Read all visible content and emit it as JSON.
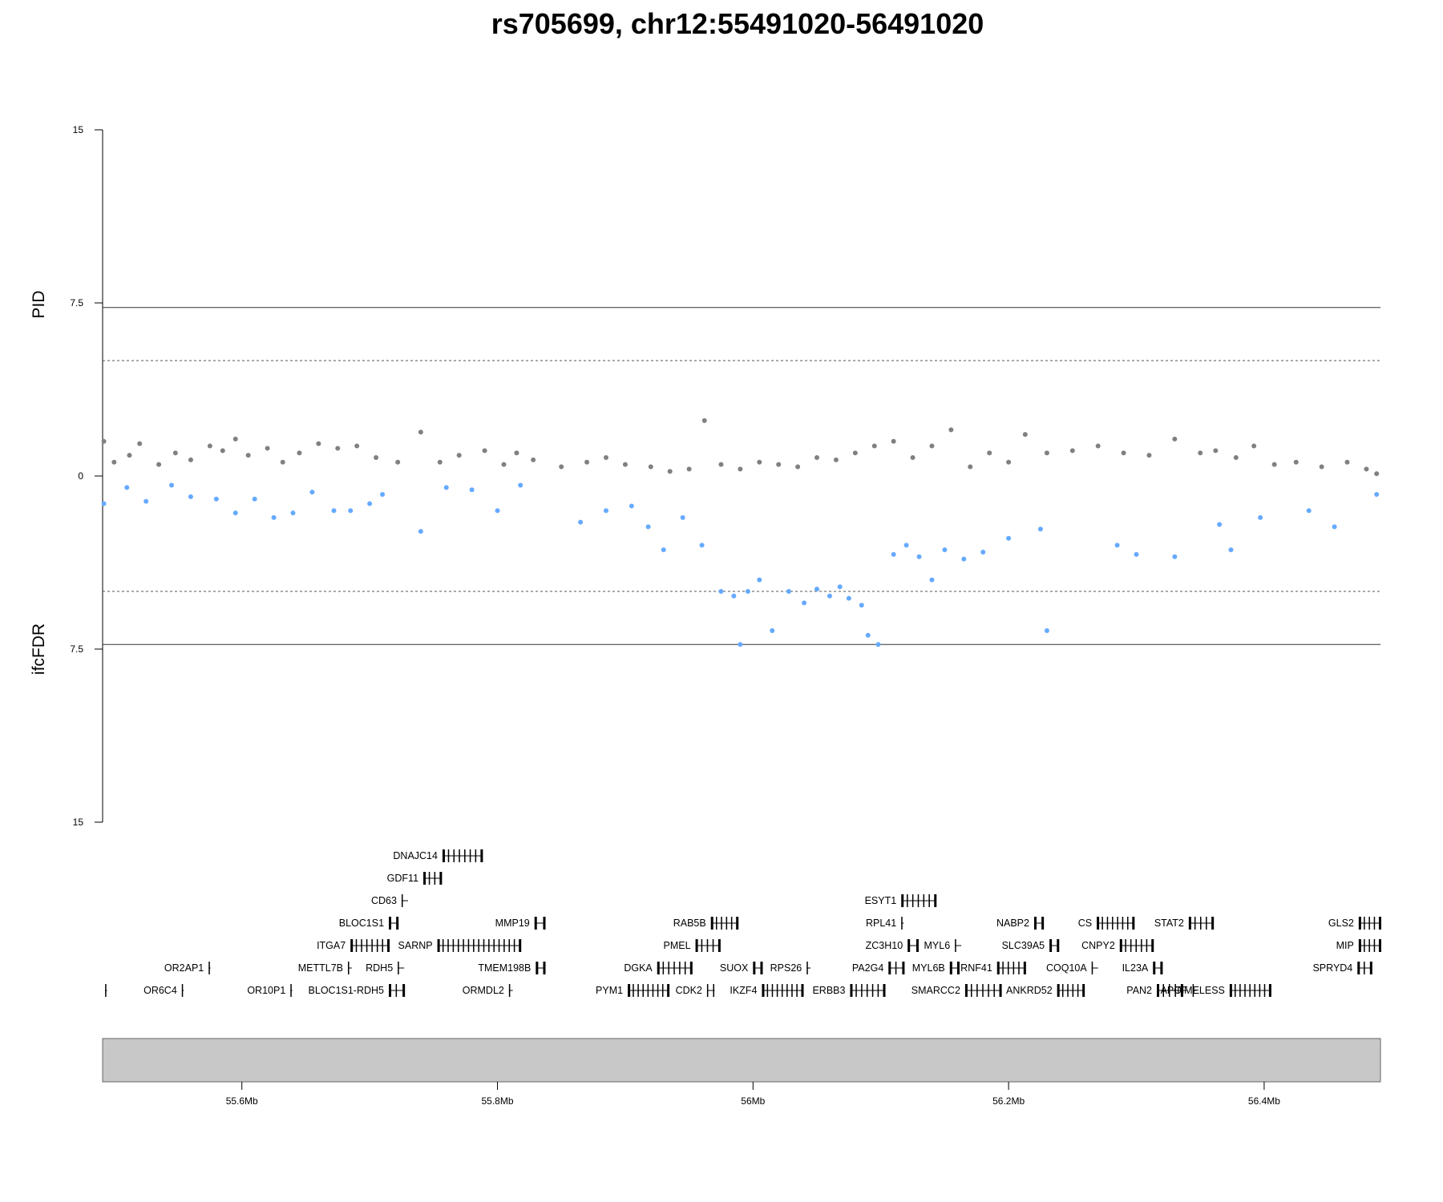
{
  "chart_data": {
    "type": "scatter",
    "title": "rs705699, chr12:55491020-56491020",
    "region": {
      "chrom": "chr12",
      "start": 55491020,
      "end": 56491020
    },
    "upper_panel": {
      "ylabel": "PID",
      "ylim": [
        0,
        15
      ],
      "yticks": [
        "0",
        "7.5",
        "15"
      ],
      "threshold_solid": 7.3,
      "threshold_dashed": 5,
      "color": "#808080"
    },
    "lower_panel": {
      "ylabel": "ifcFDR",
      "ylim": [
        0,
        15
      ],
      "yticks": [
        "0",
        "7.5",
        "15"
      ],
      "threshold_solid": 7.3,
      "threshold_dashed": 5,
      "color": "#66aaff"
    },
    "x_ticks": [
      {
        "pos": 55600000,
        "label": "55.6Mb"
      },
      {
        "pos": 55800000,
        "label": "55.8Mb"
      },
      {
        "pos": 56000000,
        "label": "56Mb"
      },
      {
        "pos": 56200000,
        "label": "56.2Mb"
      },
      {
        "pos": 56400000,
        "label": "56.4Mb"
      }
    ],
    "upper_points": [
      [
        55492000,
        1.5
      ],
      [
        55500000,
        0.6
      ],
      [
        55512000,
        0.9
      ],
      [
        55520000,
        1.4
      ],
      [
        55535000,
        0.5
      ],
      [
        55548000,
        1.0
      ],
      [
        55560000,
        0.7
      ],
      [
        55575000,
        1.3
      ],
      [
        55585000,
        1.1
      ],
      [
        55595000,
        1.6
      ],
      [
        55605000,
        0.9
      ],
      [
        55620000,
        1.2
      ],
      [
        55632000,
        0.6
      ],
      [
        55645000,
        1.0
      ],
      [
        55660000,
        1.4
      ],
      [
        55675000,
        1.2
      ],
      [
        55690000,
        1.3
      ],
      [
        55705000,
        0.8
      ],
      [
        55722000,
        0.6
      ],
      [
        55740000,
        1.9
      ],
      [
        55755000,
        0.6
      ],
      [
        55770000,
        0.9
      ],
      [
        55790000,
        1.1
      ],
      [
        55805000,
        0.5
      ],
      [
        55815000,
        1.0
      ],
      [
        55828000,
        0.7
      ],
      [
        55850000,
        0.4
      ],
      [
        55870000,
        0.6
      ],
      [
        55885000,
        0.8
      ],
      [
        55900000,
        0.5
      ],
      [
        55920000,
        0.4
      ],
      [
        55935000,
        0.2
      ],
      [
        55950000,
        0.3
      ],
      [
        55962000,
        2.4
      ],
      [
        55975000,
        0.5
      ],
      [
        55990000,
        0.3
      ],
      [
        56005000,
        0.6
      ],
      [
        56020000,
        0.5
      ],
      [
        56035000,
        0.4
      ],
      [
        56050000,
        0.8
      ],
      [
        56065000,
        0.7
      ],
      [
        56080000,
        1.0
      ],
      [
        56095000,
        1.3
      ],
      [
        56110000,
        1.5
      ],
      [
        56125000,
        0.8
      ],
      [
        56140000,
        1.3
      ],
      [
        56155000,
        2.0
      ],
      [
        56170000,
        0.4
      ],
      [
        56185000,
        1.0
      ],
      [
        56200000,
        0.6
      ],
      [
        56213000,
        1.8
      ],
      [
        56230000,
        1.0
      ],
      [
        56250000,
        1.1
      ],
      [
        56270000,
        1.3
      ],
      [
        56290000,
        1.0
      ],
      [
        56310000,
        0.9
      ],
      [
        56330000,
        1.6
      ],
      [
        56350000,
        1.0
      ],
      [
        56362000,
        1.1
      ],
      [
        56378000,
        0.8
      ],
      [
        56392000,
        1.3
      ],
      [
        56408000,
        0.5
      ],
      [
        56425000,
        0.6
      ],
      [
        56445000,
        0.4
      ],
      [
        56465000,
        0.6
      ],
      [
        56480000,
        0.3
      ],
      [
        56488000,
        0.1
      ]
    ],
    "lower_points": [
      [
        55492000,
        1.2
      ],
      [
        55510000,
        0.5
      ],
      [
        55525000,
        1.1
      ],
      [
        55545000,
        0.4
      ],
      [
        55560000,
        0.9
      ],
      [
        55580000,
        1.0
      ],
      [
        55595000,
        1.6
      ],
      [
        55610000,
        1.0
      ],
      [
        55625000,
        1.8
      ],
      [
        55640000,
        1.6
      ],
      [
        55655000,
        0.7
      ],
      [
        55672000,
        1.5
      ],
      [
        55685000,
        1.5
      ],
      [
        55700000,
        1.2
      ],
      [
        55710000,
        0.8
      ],
      [
        55740000,
        2.4
      ],
      [
        55760000,
        0.5
      ],
      [
        55780000,
        0.6
      ],
      [
        55800000,
        1.5
      ],
      [
        55818000,
        0.4
      ],
      [
        55865000,
        2.0
      ],
      [
        55885000,
        1.5
      ],
      [
        55905000,
        1.3
      ],
      [
        55918000,
        2.2
      ],
      [
        55930000,
        3.2
      ],
      [
        55945000,
        1.8
      ],
      [
        55960000,
        3.0
      ],
      [
        55975000,
        5.0
      ],
      [
        55985000,
        5.2
      ],
      [
        55990000,
        7.3
      ],
      [
        55996000,
        5.0
      ],
      [
        56005000,
        4.5
      ],
      [
        56015000,
        6.7
      ],
      [
        56028000,
        5.0
      ],
      [
        56040000,
        5.5
      ],
      [
        56050000,
        4.9
      ],
      [
        56060000,
        5.2
      ],
      [
        56068000,
        4.8
      ],
      [
        56075000,
        5.3
      ],
      [
        56085000,
        5.6
      ],
      [
        56090000,
        6.9
      ],
      [
        56098000,
        7.3
      ],
      [
        56110000,
        3.4
      ],
      [
        56120000,
        3.0
      ],
      [
        56130000,
        3.5
      ],
      [
        56140000,
        4.5
      ],
      [
        56150000,
        3.2
      ],
      [
        56165000,
        3.6
      ],
      [
        56180000,
        3.3
      ],
      [
        56200000,
        2.7
      ],
      [
        56225000,
        2.3
      ],
      [
        56230000,
        6.7
      ],
      [
        56285000,
        3.0
      ],
      [
        56300000,
        3.4
      ],
      [
        56330000,
        3.5
      ],
      [
        56365000,
        2.1
      ],
      [
        56374000,
        3.2
      ],
      [
        56397000,
        1.8
      ],
      [
        56435000,
        1.5
      ],
      [
        56455000,
        2.2
      ],
      [
        56488000,
        0.8
      ]
    ],
    "genes": [
      {
        "name": "DNAJC14",
        "start": 55757000,
        "end": 55788000,
        "row": 0,
        "strand": "-"
      },
      {
        "name": "GDF11",
        "start": 55742000,
        "end": 55756000,
        "row": 1,
        "strand": "+"
      },
      {
        "name": "CD63",
        "start": 55725000,
        "end": 55730000,
        "row": 2,
        "strand": "+"
      },
      {
        "name": "ESYT1",
        "start": 56116000,
        "end": 56143000,
        "row": 2,
        "strand": "+"
      },
      {
        "name": "BLOC1S1",
        "start": 55715000,
        "end": 55722000,
        "row": 3,
        "strand": "+"
      },
      {
        "name": "MMP19",
        "start": 55829000,
        "end": 55837000,
        "row": 3,
        "strand": "-"
      },
      {
        "name": "RAB5B",
        "start": 55967000,
        "end": 55988000,
        "row": 3,
        "strand": "+"
      },
      {
        "name": "RPL41",
        "start": 56116000,
        "end": 56118000,
        "row": 3,
        "strand": "+"
      },
      {
        "name": "NABP2",
        "start": 56220000,
        "end": 56227000,
        "row": 3,
        "strand": "+"
      },
      {
        "name": "CS",
        "start": 56269000,
        "end": 56298000,
        "row": 3,
        "strand": "-"
      },
      {
        "name": "STAT2",
        "start": 56341000,
        "end": 56360000,
        "row": 3,
        "strand": "-"
      },
      {
        "name": "GLS2",
        "start": 56474000,
        "end": 56491000,
        "row": 3,
        "strand": "-"
      },
      {
        "name": "ITGA7",
        "start": 55685000,
        "end": 55715000,
        "row": 4,
        "strand": "-"
      },
      {
        "name": "SARNP",
        "start": 55753000,
        "end": 55818000,
        "row": 4,
        "strand": "-"
      },
      {
        "name": "PMEL",
        "start": 55955000,
        "end": 55974000,
        "row": 4,
        "strand": "-"
      },
      {
        "name": "ZC3H10",
        "start": 56121000,
        "end": 56129000,
        "row": 4,
        "strand": "+"
      },
      {
        "name": "MYL6",
        "start": 56158000,
        "end": 56163000,
        "row": 4,
        "strand": "+"
      },
      {
        "name": "SLC39A5",
        "start": 56232000,
        "end": 56239000,
        "row": 4,
        "strand": "+"
      },
      {
        "name": "CNPY2",
        "start": 56287000,
        "end": 56313000,
        "row": 4,
        "strand": "-"
      },
      {
        "name": "MIP",
        "start": 56474000,
        "end": 56491000,
        "row": 4,
        "strand": "-"
      },
      {
        "name": "OR2AP1",
        "start": 55574000,
        "end": 55575500,
        "row": 5,
        "strand": "+"
      },
      {
        "name": "METTL7B",
        "start": 55683000,
        "end": 55686000,
        "row": 5,
        "strand": "+"
      },
      {
        "name": "RDH5",
        "start": 55722000,
        "end": 55727000,
        "row": 5,
        "strand": "+"
      },
      {
        "name": "TMEM198B",
        "start": 55830000,
        "end": 55837000,
        "row": 5,
        "strand": "+"
      },
      {
        "name": "DGKA",
        "start": 55925000,
        "end": 55952000,
        "row": 5,
        "strand": "+"
      },
      {
        "name": "SUOX",
        "start": 56000000,
        "end": 56007000,
        "row": 5,
        "strand": "+"
      },
      {
        "name": "RPS26",
        "start": 56042000,
        "end": 56045000,
        "row": 5,
        "strand": "+"
      },
      {
        "name": "PA2G4",
        "start": 56106000,
        "end": 56118000,
        "row": 5,
        "strand": "+"
      },
      {
        "name": "MYL6B",
        "start": 56154000,
        "end": 56161000,
        "row": 5,
        "strand": "-"
      },
      {
        "name": "RNF41",
        "start": 56191000,
        "end": 56213000,
        "row": 5,
        "strand": "-"
      },
      {
        "name": "COQ10A",
        "start": 56265000,
        "end": 56270000,
        "row": 5,
        "strand": "+"
      },
      {
        "name": "IL23A",
        "start": 56313000,
        "end": 56320000,
        "row": 5,
        "strand": "+"
      },
      {
        "name": "SPRYD4",
        "start": 56473000,
        "end": 56484000,
        "row": 5,
        "strand": "+"
      },
      {
        "name": "",
        "start": 55493000,
        "end": 55494500,
        "row": 6,
        "strand": "+"
      },
      {
        "name": "OR6C4",
        "start": 55553000,
        "end": 55554500,
        "row": 6,
        "strand": "+"
      },
      {
        "name": "OR10P1",
        "start": 55638000,
        "end": 55639500,
        "row": 6,
        "strand": "+"
      },
      {
        "name": "BLOC1S1-RDH5",
        "start": 55715000,
        "end": 55727000,
        "row": 6,
        "strand": "+"
      },
      {
        "name": "ORMDL2",
        "start": 55809000,
        "end": 55812000,
        "row": 6,
        "strand": "-"
      },
      {
        "name": "PYM1",
        "start": 55902000,
        "end": 55934000,
        "row": 6,
        "strand": "-"
      },
      {
        "name": "CDK2",
        "start": 55964000,
        "end": 55970000,
        "row": 6,
        "strand": "+"
      },
      {
        "name": "IKZF4",
        "start": 56007000,
        "end": 56039000,
        "row": 6,
        "strand": "+"
      },
      {
        "name": "ERBB3",
        "start": 56076000,
        "end": 56103000,
        "row": 6,
        "strand": "+"
      },
      {
        "name": "SMARCC2",
        "start": 56166000,
        "end": 56194000,
        "row": 6,
        "strand": "-"
      },
      {
        "name": "ANKRD52",
        "start": 56238000,
        "end": 56259000,
        "row": 6,
        "strand": "-"
      },
      {
        "name": "PAN2",
        "start": 56316000,
        "end": 56336000,
        "row": 6,
        "strand": "-"
      },
      {
        "name": "APOF",
        "start": 56344000,
        "end": 56347000,
        "row": 6,
        "strand": "-"
      },
      {
        "name": "TIMELESS",
        "start": 56373000,
        "end": 56405000,
        "row": 6,
        "strand": "-"
      }
    ]
  }
}
